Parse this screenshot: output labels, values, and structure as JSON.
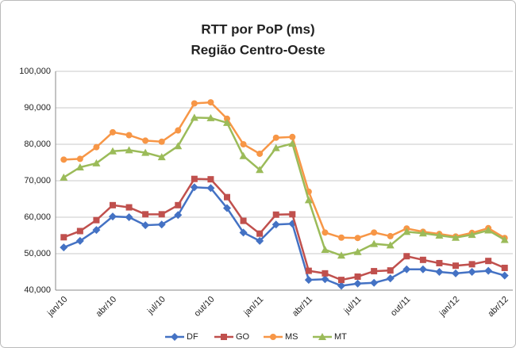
{
  "chart_data": {
    "type": "line",
    "title": "RTT por PoP (ms)",
    "subtitle": "Região Centro-Oeste",
    "categories": [
      "jan/10",
      null,
      null,
      "abr/10",
      null,
      null,
      "jul/10",
      null,
      null,
      "out/10",
      null,
      null,
      "jan/11",
      null,
      null,
      "abr/11",
      null,
      null,
      "jul/11",
      null,
      null,
      "out/11",
      null,
      null,
      "jan/12",
      null,
      null,
      "abr/12"
    ],
    "series": [
      {
        "name": "DF",
        "color": "#4472c4",
        "marker": "diamond",
        "values": [
          51700,
          53500,
          56500,
          60200,
          60000,
          57800,
          58000,
          60600,
          68200,
          68000,
          62500,
          55800,
          53500,
          58000,
          58200,
          42800,
          43000,
          41200,
          41800,
          42000,
          43200,
          45700,
          45700,
          45000,
          44600,
          45000,
          45300,
          44000
        ]
      },
      {
        "name": "GO",
        "color": "#c0504d",
        "marker": "square",
        "values": [
          54500,
          56200,
          59200,
          63300,
          62700,
          60800,
          60800,
          63300,
          70500,
          70400,
          65500,
          59000,
          55500,
          60700,
          60800,
          45300,
          44600,
          42800,
          43700,
          45200,
          45400,
          49300,
          48300,
          47400,
          46700,
          47100,
          48000,
          46100
        ]
      },
      {
        "name": "MS",
        "color": "#f79646",
        "marker": "circle",
        "values": [
          75800,
          76000,
          79200,
          83300,
          82500,
          81000,
          80700,
          83800,
          91200,
          91500,
          87000,
          80000,
          77400,
          81800,
          82000,
          67000,
          55800,
          54400,
          54300,
          55800,
          54800,
          56900,
          56000,
          55400,
          54700,
          55700,
          57000,
          54300
        ]
      },
      {
        "name": "MT",
        "color": "#9bbb59",
        "marker": "triangle",
        "values": [
          70900,
          73700,
          74800,
          78100,
          78400,
          77700,
          76500,
          79500,
          87300,
          87200,
          85900,
          76800,
          73000,
          79000,
          80200,
          64700,
          51100,
          49500,
          50500,
          52700,
          52300,
          56000,
          55600,
          55000,
          54400,
          55200,
          56400,
          53800
        ]
      }
    ],
    "ylim": [
      40000,
      100000
    ],
    "yticks": [
      {
        "value": 40000,
        "label": "40,000"
      },
      {
        "value": 50000,
        "label": "50,000"
      },
      {
        "value": 60000,
        "label": "60,000"
      },
      {
        "value": 70000,
        "label": "70,000"
      },
      {
        "value": 80000,
        "label": "80,000"
      },
      {
        "value": 90000,
        "label": "90,000"
      },
      {
        "value": 100000,
        "label": "100,000"
      }
    ],
    "grid": true,
    "legend": "bottom"
  }
}
